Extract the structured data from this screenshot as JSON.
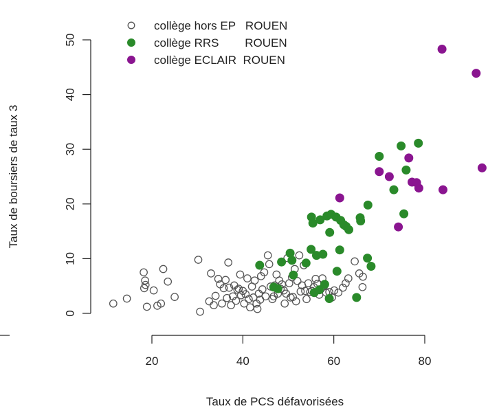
{
  "chart_data": {
    "type": "scatter",
    "xlabel": "Taux de PCS défavorisées",
    "ylabel": "Taux de boursiers de taux 3",
    "xlim": [
      9,
      94
    ],
    "ylim": [
      -1.5,
      52
    ],
    "xticks": [
      "20",
      "40",
      "60",
      "80"
    ],
    "yticks": [
      "0",
      "10",
      "20",
      "30",
      "40",
      "50"
    ],
    "legend_position": "top-left",
    "series": [
      {
        "name": "collège hors EP   ROUEN",
        "marker": "open-circle",
        "color": "#555555",
        "points": [
          [
            11.5,
            1.8
          ],
          [
            14.5,
            2.7
          ],
          [
            18.2,
            7.5
          ],
          [
            18.3,
            4.6
          ],
          [
            18.5,
            6.0
          ],
          [
            18.6,
            5.2
          ],
          [
            18.9,
            1.2
          ],
          [
            20.4,
            4.2
          ],
          [
            21.2,
            1.4
          ],
          [
            22.0,
            1.8
          ],
          [
            22.5,
            8.1
          ],
          [
            23.5,
            5.8
          ],
          [
            25.0,
            3.0
          ],
          [
            30.2,
            9.8
          ],
          [
            30.6,
            0.3
          ],
          [
            32.6,
            2.2
          ],
          [
            33.0,
            7.3
          ],
          [
            33.6,
            1.5
          ],
          [
            34.0,
            3.2
          ],
          [
            34.6,
            6.3
          ],
          [
            35.0,
            5.3
          ],
          [
            35.4,
            1.8
          ],
          [
            35.8,
            4.6
          ],
          [
            36.2,
            6.1
          ],
          [
            36.5,
            2.8
          ],
          [
            36.8,
            9.3
          ],
          [
            37.0,
            4.7
          ],
          [
            37.4,
            1.5
          ],
          [
            37.8,
            3.1
          ],
          [
            38.1,
            5.1
          ],
          [
            38.5,
            2.3
          ],
          [
            38.8,
            4.3
          ],
          [
            39.1,
            4.5
          ],
          [
            39.4,
            7.1
          ],
          [
            39.6,
            3.3
          ],
          [
            40.0,
            4.1
          ],
          [
            40.3,
            1.8
          ],
          [
            40.6,
            3.5
          ],
          [
            41.0,
            6.4
          ],
          [
            41.3,
            2.6
          ],
          [
            41.6,
            1.1
          ],
          [
            42.0,
            4.9
          ],
          [
            42.3,
            2.9
          ],
          [
            42.6,
            6.0
          ],
          [
            43.0,
            1.8
          ],
          [
            43.2,
            0.8
          ],
          [
            43.5,
            3.6
          ],
          [
            43.8,
            2.5
          ],
          [
            44.0,
            6.8
          ],
          [
            44.3,
            4.4
          ],
          [
            44.7,
            7.5
          ],
          [
            45.0,
            3.1
          ],
          [
            45.5,
            10.6
          ],
          [
            45.8,
            9.0
          ],
          [
            46.1,
            4.9
          ],
          [
            46.5,
            2.6
          ],
          [
            46.8,
            3.1
          ],
          [
            47.0,
            5.1
          ],
          [
            47.4,
            7.1
          ],
          [
            47.7,
            3.6
          ],
          [
            48.0,
            6.0
          ],
          [
            48.3,
            4.5
          ],
          [
            48.6,
            5.3
          ],
          [
            49.0,
            4.2
          ],
          [
            49.2,
            1.8
          ],
          [
            49.5,
            3.6
          ],
          [
            49.8,
            10.1
          ],
          [
            50.2,
            5.5
          ],
          [
            50.5,
            2.9
          ],
          [
            50.8,
            6.6
          ],
          [
            51.0,
            3.0
          ],
          [
            51.4,
            8.1
          ],
          [
            51.7,
            2.2
          ],
          [
            52.0,
            5.9
          ],
          [
            52.4,
            10.6
          ],
          [
            52.7,
            4.0
          ],
          [
            53.0,
            5.1
          ],
          [
            53.4,
            8.8
          ],
          [
            53.7,
            4.1
          ],
          [
            54.0,
            2.6
          ],
          [
            54.4,
            5.5
          ],
          [
            54.8,
            3.9
          ],
          [
            55.2,
            4.1
          ],
          [
            55.6,
            4.8
          ],
          [
            56.0,
            6.3
          ],
          [
            56.4,
            5.4
          ],
          [
            56.8,
            3.4
          ],
          [
            57.1,
            4.4
          ],
          [
            57.5,
            6.4
          ],
          [
            57.8,
            4.9
          ],
          [
            58.3,
            3.8
          ],
          [
            59.0,
            3.9
          ],
          [
            59.6,
            2.9
          ],
          [
            60.1,
            4.2
          ],
          [
            61.0,
            3.8
          ],
          [
            62.0,
            4.7
          ],
          [
            62.6,
            5.5
          ],
          [
            63.2,
            6.4
          ],
          [
            64.6,
            9.5
          ],
          [
            65.6,
            7.3
          ],
          [
            66.4,
            6.7
          ],
          [
            66.3,
            4.8
          ]
        ]
      },
      {
        "name": "collège RRS        ROUEN",
        "marker": "filled-circle",
        "color": "#2a8a2a",
        "points": [
          [
            43.7,
            8.8
          ],
          [
            46.8,
            4.8
          ],
          [
            47.7,
            4.5
          ],
          [
            48.5,
            9.4
          ],
          [
            50.4,
            11.0
          ],
          [
            50.8,
            9.7
          ],
          [
            51.1,
            7.0
          ],
          [
            53.9,
            9.2
          ],
          [
            55.0,
            11.7
          ],
          [
            55.1,
            17.6
          ],
          [
            55.4,
            16.5
          ],
          [
            55.7,
            3.8
          ],
          [
            56.2,
            10.6
          ],
          [
            56.8,
            4.3
          ],
          [
            57.0,
            17.1
          ],
          [
            57.6,
            10.8
          ],
          [
            58.0,
            5.3
          ],
          [
            58.5,
            17.8
          ],
          [
            59.0,
            2.7
          ],
          [
            59.1,
            14.8
          ],
          [
            59.4,
            18.1
          ],
          [
            60.5,
            17.6
          ],
          [
            60.7,
            7.7
          ],
          [
            61.3,
            11.6
          ],
          [
            61.5,
            17.0
          ],
          [
            62.2,
            16.2
          ],
          [
            62.7,
            15.9
          ],
          [
            63.3,
            15.3
          ],
          [
            65.0,
            2.9
          ],
          [
            65.8,
            17.5
          ],
          [
            65.9,
            16.9
          ],
          [
            67.4,
            10.1
          ],
          [
            67.5,
            19.8
          ],
          [
            68.2,
            8.6
          ],
          [
            70.0,
            28.7
          ],
          [
            73.2,
            22.6
          ],
          [
            74.8,
            30.6
          ],
          [
            75.4,
            18.2
          ],
          [
            75.9,
            26.2
          ],
          [
            78.6,
            31.1
          ]
        ]
      },
      {
        "name": "collège ECLAIR  ROUEN",
        "marker": "filled-circle",
        "color": "#8a1590",
        "points": [
          [
            61.3,
            21.1
          ],
          [
            70.0,
            25.9
          ],
          [
            72.2,
            25.0
          ],
          [
            74.2,
            15.8
          ],
          [
            76.5,
            28.4
          ],
          [
            77.2,
            24.0
          ],
          [
            78.2,
            23.9
          ],
          [
            78.7,
            22.9
          ],
          [
            83.8,
            48.3
          ],
          [
            84.0,
            22.6
          ],
          [
            91.3,
            43.9
          ],
          [
            92.6,
            26.6
          ]
        ]
      }
    ]
  }
}
